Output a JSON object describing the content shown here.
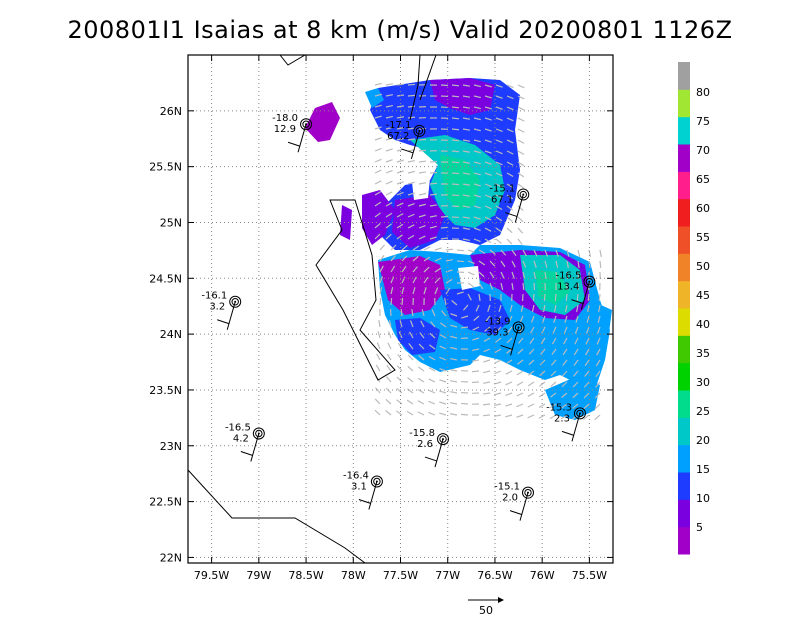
{
  "title": "200801I1  Isaias at 8 km (m/s) Valid 20200801  1126Z",
  "map": {
    "lon_range": [
      -79.75,
      -75.25
    ],
    "lat_range": [
      21.95,
      26.5
    ],
    "lat_ticks": [
      {
        "value": 26.0,
        "label": "26N"
      },
      {
        "value": 25.5,
        "label": "25.5N"
      },
      {
        "value": 25.0,
        "label": "25N"
      },
      {
        "value": 24.5,
        "label": "24.5N"
      },
      {
        "value": 24.0,
        "label": "24N"
      },
      {
        "value": 23.5,
        "label": "23.5N"
      },
      {
        "value": 23.0,
        "label": "23N"
      },
      {
        "value": 22.5,
        "label": "22.5N"
      },
      {
        "value": 22.0,
        "label": "22N"
      }
    ],
    "lon_ticks": [
      {
        "value": -79.5,
        "label": "79.5W"
      },
      {
        "value": -79.0,
        "label": "79W"
      },
      {
        "value": -78.5,
        "label": "78.5W"
      },
      {
        "value": -78.0,
        "label": "78W"
      },
      {
        "value": -77.5,
        "label": "77.5W"
      },
      {
        "value": -77.0,
        "label": "77W"
      },
      {
        "value": -76.5,
        "label": "76.5W"
      },
      {
        "value": -76.0,
        "label": "76W"
      },
      {
        "value": -75.5,
        "label": "75.5W"
      }
    ],
    "grid": "dotted"
  },
  "colorbar": {
    "labels": [
      "5",
      "10",
      "15",
      "20",
      "25",
      "30",
      "35",
      "40",
      "45",
      "50",
      "55",
      "60",
      "65",
      "70",
      "75",
      "80"
    ],
    "colors": [
      "#a000c8",
      "#7a00e0",
      "#1e3cff",
      "#00a0ff",
      "#00c8c8",
      "#00dc8c",
      "#00d200",
      "#40c800",
      "#dcdc00",
      "#f0b428",
      "#f08228",
      "#f05028",
      "#f01e1e",
      "#ff1e8c",
      "#a000c8",
      "#00d2d2",
      "#a0e632",
      "#a0a0a0"
    ]
  },
  "stations": [
    {
      "lon": -78.5,
      "lat": 25.88,
      "temp": "-18.0",
      "speed": "12.9"
    },
    {
      "lon": -77.3,
      "lat": 25.82,
      "temp": "-17.1",
      "speed": "67.2"
    },
    {
      "lon": -76.2,
      "lat": 25.25,
      "temp": "-15.1",
      "speed": "67.1"
    },
    {
      "lon": -75.5,
      "lat": 24.47,
      "temp": "-16.5",
      "speed": "13.4"
    },
    {
      "lon": -76.25,
      "lat": 24.06,
      "temp": "-13.9",
      "speed": "39.3"
    },
    {
      "lon": -79.25,
      "lat": 24.29,
      "temp": "-16.1",
      "speed": "3.2"
    },
    {
      "lon": -75.6,
      "lat": 23.29,
      "temp": "-15.3",
      "speed": "2.3"
    },
    {
      "lon": -79.0,
      "lat": 23.11,
      "temp": "-16.5",
      "speed": "4.2"
    },
    {
      "lon": -77.05,
      "lat": 23.06,
      "temp": "-15.8",
      "speed": "2.6"
    },
    {
      "lon": -77.75,
      "lat": 22.68,
      "temp": "-16.4",
      "speed": "3.1"
    },
    {
      "lon": -76.15,
      "lat": 22.58,
      "temp": "-15.1",
      "speed": "2.0"
    }
  ],
  "reference_vector": {
    "label": "50"
  }
}
